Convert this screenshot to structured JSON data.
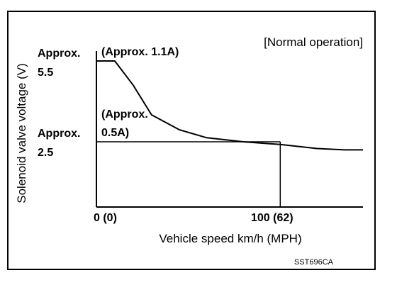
{
  "chart_data": {
    "type": "line",
    "title": "[Normal operation]",
    "ylabel": "Solenoid valve voltage (V)",
    "xlabel": "Vehicle speed km/h (MPH)",
    "y_high_label": [
      "Approx.",
      "5.5"
    ],
    "y_low_label": [
      "Approx.",
      "2.5"
    ],
    "annotation_high": "(Approx. 1.1A)",
    "annotation_low": [
      "(Approx.",
      "0.5A)"
    ],
    "x_tick_labels": [
      "0 (0)",
      "100 (62)"
    ],
    "figure_code": "SST696CA",
    "x": [
      0,
      10,
      20,
      30,
      45,
      60,
      80,
      100,
      120,
      135,
      145
    ],
    "y": [
      5.5,
      5.5,
      4.6,
      3.5,
      2.95,
      2.65,
      2.5,
      2.4,
      2.25,
      2.2,
      2.2
    ],
    "reference_x": 100,
    "reference_y": 2.5,
    "xlim": [
      0,
      145
    ],
    "ylim": [
      0,
      6
    ],
    "grid": false
  }
}
